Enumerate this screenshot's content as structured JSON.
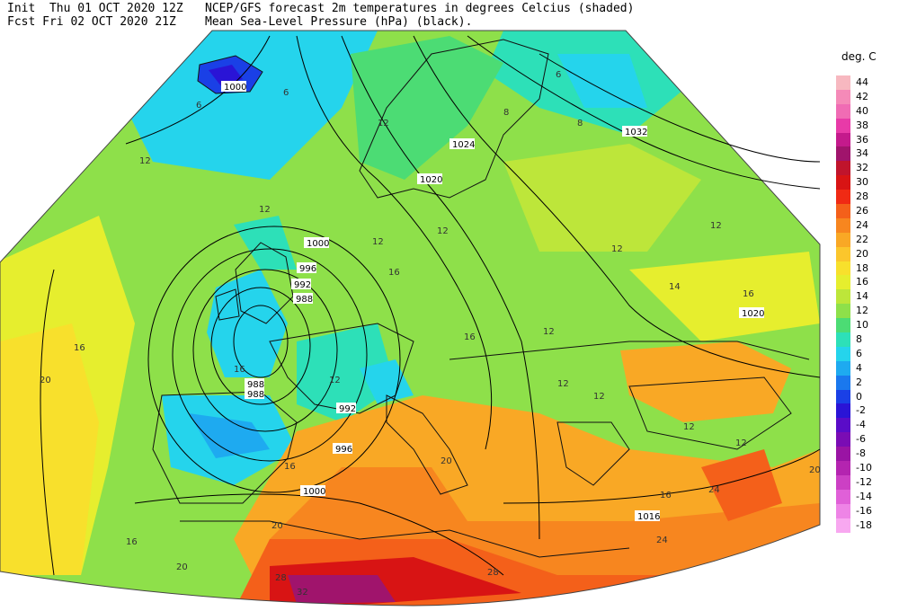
{
  "header": {
    "line1_left": "Init  Thu 01 OCT 2020 12Z",
    "line2_left": "Fcst Fri 02 OCT 2020 21Z",
    "line1_right": "NCEP/GFS forecast 2m temperatures in degrees Celcius (shaded)",
    "line2_right": "Mean Sea-Level Pressure (hPa) (black)."
  },
  "legend": {
    "title": "deg. C",
    "items": [
      {
        "label": "44",
        "color": "#f7b8c0"
      },
      {
        "label": "42",
        "color": "#f58ab8"
      },
      {
        "label": "40",
        "color": "#f06cb4"
      },
      {
        "label": "38",
        "color": "#e83aa8"
      },
      {
        "label": "36",
        "color": "#c41a8c"
      },
      {
        "label": "34",
        "color": "#a0146c"
      },
      {
        "label": "32",
        "color": "#c0142c"
      },
      {
        "label": "30",
        "color": "#d81414"
      },
      {
        "label": "28",
        "color": "#f02a14"
      },
      {
        "label": "26",
        "color": "#f4601a"
      },
      {
        "label": "24",
        "color": "#f7861f"
      },
      {
        "label": "22",
        "color": "#f9a825"
      },
      {
        "label": "20",
        "color": "#fbc62c"
      },
      {
        "label": "18",
        "color": "#f8e02c"
      },
      {
        "label": "16",
        "color": "#e6ee2e"
      },
      {
        "label": "14",
        "color": "#bde63a"
      },
      {
        "label": "12",
        "color": "#8ee04a"
      },
      {
        "label": "10",
        "color": "#4cdc74"
      },
      {
        "label": "8",
        "color": "#2de0b8"
      },
      {
        "label": "6",
        "color": "#25d4ec"
      },
      {
        "label": "4",
        "color": "#1eaaf0"
      },
      {
        "label": "2",
        "color": "#1a78ee"
      },
      {
        "label": "0",
        "color": "#1a40e6"
      },
      {
        "label": "-2",
        "color": "#2a14d6"
      },
      {
        "label": "-4",
        "color": "#5a0cc8"
      },
      {
        "label": "-6",
        "color": "#7a0cb4"
      },
      {
        "label": "-8",
        "color": "#9a14a4"
      },
      {
        "label": "-10",
        "color": "#b424b0"
      },
      {
        "label": "-12",
        "color": "#cc40c4"
      },
      {
        "label": "-14",
        "color": "#e060d8"
      },
      {
        "label": "-16",
        "color": "#ee84e6"
      },
      {
        "label": "-18",
        "color": "#f8a8f0"
      }
    ]
  },
  "map": {
    "isobar_labels": [
      "1000",
      "1032",
      "1024",
      "1020",
      "1000",
      "996",
      "992",
      "988",
      "988",
      "988",
      "992",
      "996",
      "1000",
      "1020",
      "1016"
    ],
    "temp_labels": [
      "6",
      "6",
      "6",
      "8",
      "12",
      "12",
      "12",
      "8",
      "12",
      "12",
      "12",
      "12",
      "12",
      "12",
      "14",
      "16",
      "16",
      "16",
      "16",
      "16",
      "20",
      "20",
      "20",
      "16",
      "16",
      "12",
      "12",
      "24",
      "28",
      "28",
      "32",
      "12",
      "12",
      "24",
      "20",
      "20",
      "16"
    ]
  }
}
